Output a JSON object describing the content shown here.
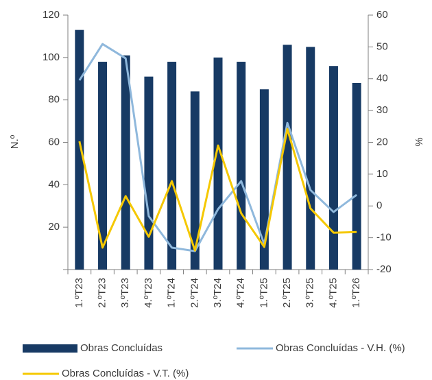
{
  "chart_data": {
    "type": "bar",
    "categories": [
      "1.ºT23",
      "2.ºT23",
      "3.ºT23",
      "4.ºT23",
      "1.ºT24",
      "2.ºT24",
      "3.ºT24",
      "4.ºT24",
      "1.ºT25",
      "2.ºT25",
      "3.ºT25",
      "4.ºT25",
      "1.ºT26"
    ],
    "series": [
      {
        "name": "Obras Concluídas",
        "type": "bar",
        "color": "#173a64",
        "values": [
          113,
          98,
          101,
          91,
          98,
          84,
          100,
          98,
          85,
          106,
          105,
          96,
          88
        ]
      },
      {
        "name": "Obras Concluídas - V.H. (%)",
        "type": "line",
        "axis": "y2",
        "color": "#8fb8dc",
        "values": [
          39.5,
          50.9,
          46.4,
          -3.2,
          -13.1,
          -14.2,
          -1,
          7.8,
          -12,
          26.1,
          5,
          -1.9,
          3.5
        ]
      },
      {
        "name": "Obras Concluídas - V.T. (%)",
        "type": "line",
        "axis": "y2",
        "color": "#f5c800",
        "values": [
          20.3,
          -13.1,
          3.1,
          -9.7,
          7.8,
          -14,
          19,
          -2.3,
          -12.9,
          24.2,
          -0.8,
          -8.4,
          -8.2
        ]
      }
    ],
    "ylabel": "N.º",
    "y2label": "%",
    "ylim": [
      0,
      120
    ],
    "yticks": [
      20,
      40,
      60,
      80,
      100,
      120
    ],
    "y2lim": [
      -20,
      60
    ],
    "y2ticks": [
      -20,
      -10,
      0,
      10,
      20,
      30,
      40,
      50,
      60
    ]
  }
}
